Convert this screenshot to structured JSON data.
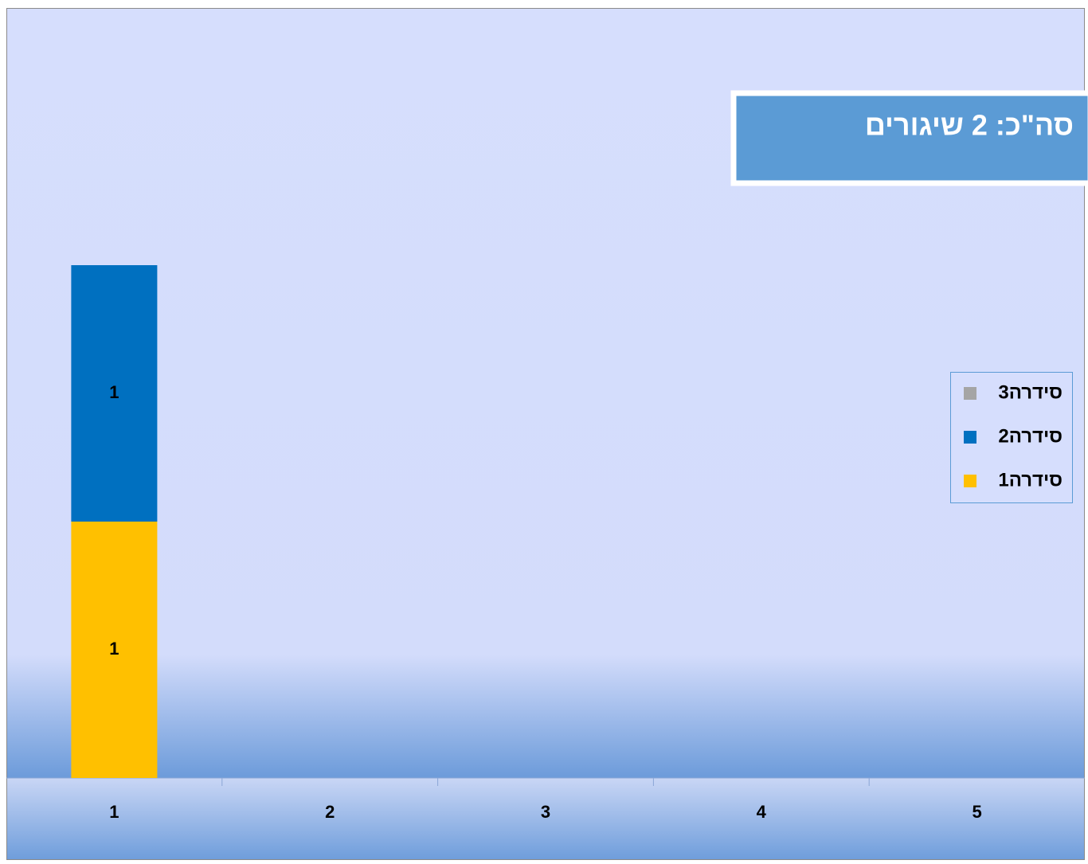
{
  "chart_data": {
    "type": "stacked_bar",
    "title": "סה\"כ:  2 שיגורים",
    "categories": [
      "1",
      "2",
      "3",
      "4",
      "5"
    ],
    "series": [
      {
        "name": "סידרה1",
        "color": "#FFC000",
        "values": [
          1,
          null,
          null,
          null,
          null
        ]
      },
      {
        "name": "סידרה2",
        "color": "#0070C0",
        "values": [
          1,
          null,
          null,
          null,
          null
        ]
      },
      {
        "name": "סידרה3",
        "color": "#A5A5A5",
        "values": [
          null,
          null,
          null,
          null,
          null
        ]
      }
    ],
    "ylim": [
      0,
      3
    ],
    "legend": "right"
  }
}
